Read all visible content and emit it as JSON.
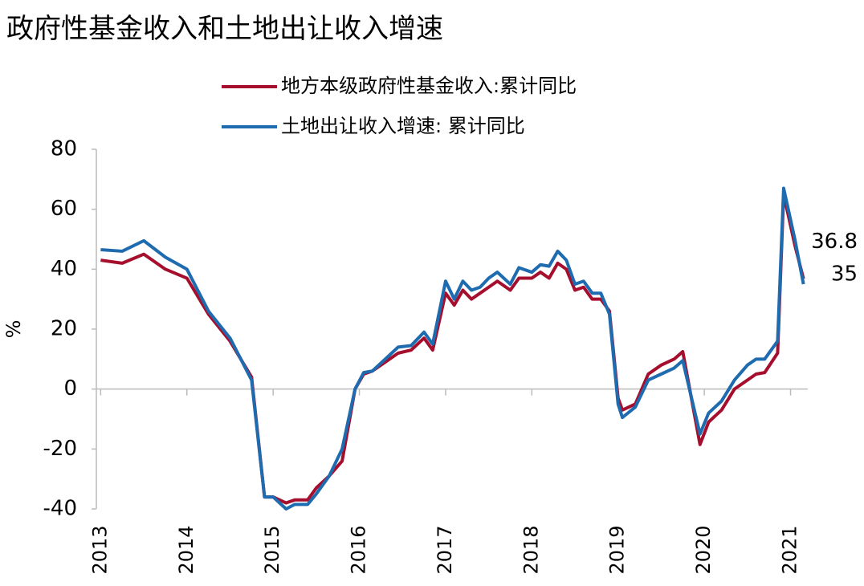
{
  "chart_data": {
    "type": "line",
    "title": "政府性基金收入和土地出让收入增速",
    "y_label": "%",
    "x": [
      2013.0,
      2013.25,
      2013.5,
      2013.75,
      2014.0,
      2014.25,
      2014.5,
      2014.75,
      2014.9,
      2015.0,
      2015.15,
      2015.25,
      2015.4,
      2015.5,
      2015.65,
      2015.8,
      2015.95,
      2016.05,
      2016.15,
      2016.3,
      2016.45,
      2016.6,
      2016.75,
      2016.85,
      2017.0,
      2017.1,
      2017.2,
      2017.3,
      2017.4,
      2017.5,
      2017.6,
      2017.75,
      2017.85,
      2018.0,
      2018.1,
      2018.2,
      2018.3,
      2018.4,
      2018.5,
      2018.6,
      2018.7,
      2018.8,
      2018.9,
      2019.0,
      2019.05,
      2019.2,
      2019.35,
      2019.5,
      2019.65,
      2019.75,
      2019.95,
      2020.05,
      2020.2,
      2020.35,
      2020.5,
      2020.6,
      2020.7,
      2020.85,
      2020.92,
      2021.05,
      2021.15
    ],
    "series": [
      {
        "name": "地方本级政府性基金收入:累计同比",
        "color": "#a50f2d",
        "values": [
          43,
          42,
          45,
          40,
          37,
          25,
          16,
          4,
          -36,
          -36,
          -38,
          -37,
          -37,
          -33,
          -29,
          -24,
          0,
          5,
          6,
          9,
          12,
          13,
          17,
          13,
          32,
          28,
          33,
          30,
          32,
          34,
          36,
          33,
          37,
          37,
          39,
          37,
          42,
          40,
          33,
          34,
          30,
          30,
          26,
          -3,
          -7,
          -5,
          5,
          8,
          10,
          12.5,
          -18.5,
          -11,
          -7,
          0,
          3,
          5,
          5.5,
          12,
          65,
          48,
          36.8
        ]
      },
      {
        "name": "土地出让收入增速: 累计同比",
        "color": "#1f6bb0",
        "values": [
          46.5,
          46,
          49.5,
          44,
          40,
          26,
          17,
          3,
          -36,
          -36,
          -40,
          -38.5,
          -38.5,
          -35,
          -29,
          -20,
          0,
          5.5,
          6,
          10,
          14,
          14.5,
          19,
          15,
          36,
          30,
          36,
          33,
          34,
          37,
          39,
          35,
          40.5,
          39,
          41.5,
          41,
          46,
          43,
          35,
          36,
          32,
          32,
          25,
          -5,
          -9.5,
          -6,
          3,
          5,
          7,
          9.5,
          -15,
          -8,
          -4,
          3,
          8,
          10,
          10,
          16,
          67,
          50,
          35
        ]
      }
    ],
    "xlim": [
      2012.95,
      2021.2
    ],
    "xticks": [
      2013,
      2014,
      2015,
      2016,
      2017,
      2018,
      2019,
      2020,
      2021
    ],
    "ylim": [
      -40,
      80
    ],
    "yticks": [
      -40,
      -20,
      0,
      20,
      40,
      60,
      80
    ],
    "grid": false
  }
}
